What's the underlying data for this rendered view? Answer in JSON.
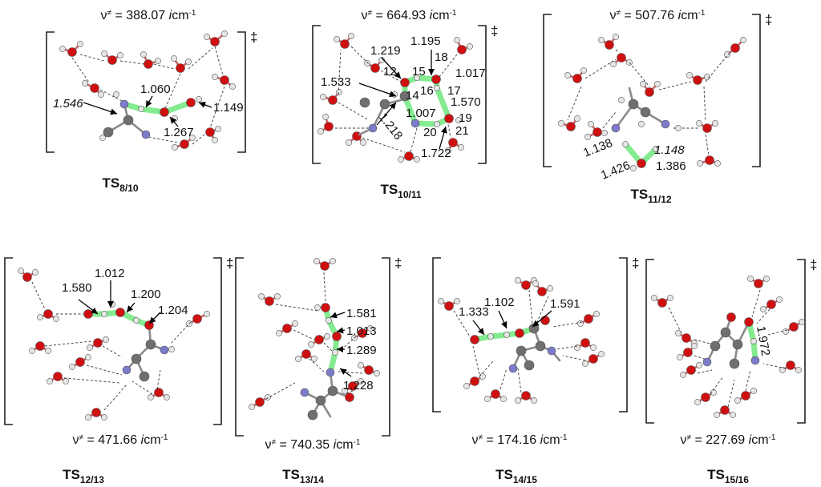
{
  "panels": [
    {
      "name": "8/10",
      "freq": "388.07",
      "labels": [
        {
          "t": "1.060",
          "i": false
        },
        {
          "t": "1.546",
          "i": true
        },
        {
          "t": "1.149",
          "i": false
        },
        {
          "t": "1.267",
          "i": false
        }
      ]
    },
    {
      "name": "10/11",
      "freq": "664.93",
      "labels": [
        {
          "t": "1.219",
          "i": false
        },
        {
          "t": "1.195",
          "i": false
        },
        {
          "t": "18",
          "i": false
        },
        {
          "t": "12",
          "i": false
        },
        {
          "t": "15",
          "i": false
        },
        {
          "t": "1.533",
          "i": false
        },
        {
          "t": "14",
          "i": false
        },
        {
          "t": "16",
          "i": false
        },
        {
          "t": "1.017",
          "i": false
        },
        {
          "t": "17",
          "i": false
        },
        {
          "t": "1.570",
          "i": false
        },
        {
          "t": "1.007",
          "i": false
        },
        {
          "t": "19",
          "i": false
        },
        {
          "t": "20",
          "i": false
        },
        {
          "t": "21",
          "i": false
        },
        {
          "t": "1.218",
          "i": false
        },
        {
          "t": "1.722",
          "i": false
        }
      ]
    },
    {
      "name": "11/12",
      "freq": "507.76",
      "labels": [
        {
          "t": "1.138",
          "i": false
        },
        {
          "t": "1.148",
          "i": true
        },
        {
          "t": "1.426",
          "i": false
        },
        {
          "t": "1.386",
          "i": false
        }
      ]
    },
    {
      "name": "12/13",
      "freq": "471.66",
      "labels": [
        {
          "t": "1.012",
          "i": false
        },
        {
          "t": "1.580",
          "i": false
        },
        {
          "t": "1.200",
          "i": false
        },
        {
          "t": "1.204",
          "i": false
        }
      ]
    },
    {
      "name": "13/14",
      "freq": "740.35",
      "labels": [
        {
          "t": "1.581",
          "i": false
        },
        {
          "t": "1.013",
          "i": false
        },
        {
          "t": "1.289",
          "i": false
        },
        {
          "t": "1.228",
          "i": false
        }
      ]
    },
    {
      "name": "14/15",
      "freq": "174.16",
      "labels": [
        {
          "t": "1.102",
          "i": false
        },
        {
          "t": "1.333",
          "i": false
        },
        {
          "t": "1.591",
          "i": false
        }
      ]
    },
    {
      "name": "15/16",
      "freq": "227.69",
      "labels": [
        {
          "t": "1.972",
          "i": false
        }
      ]
    }
  ],
  "text": {
    "freq_prefix": "ν",
    "freq_sup": "≠",
    "freq_eq": " = ",
    "freq_unit": "i",
    "freq_unit_tail": "cm",
    "freq_unit_exp": "-1",
    "ts": "TS",
    "dagger": "‡"
  },
  "colors": {
    "oxygen": "#d01010",
    "hydrogen": "#e6e6e6",
    "carbon": "#6f6f6f",
    "nitrogen": "#7b7bc9",
    "highlight": "#6fe87d",
    "bracket": "#222222",
    "hbond": "#333333"
  }
}
